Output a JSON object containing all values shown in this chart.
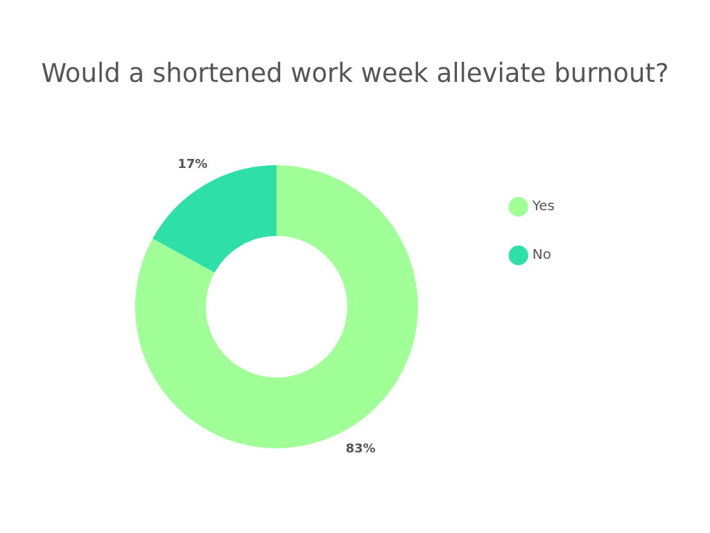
{
  "chart_data": {
    "type": "donut",
    "title": "Would a shortened work week alleviate burnout?",
    "categories": [
      "Yes",
      "No"
    ],
    "values": [
      83,
      17
    ],
    "colors": [
      "#a0ff96",
      "#2ee0a8"
    ],
    "value_labels": [
      "83%",
      "17%"
    ],
    "legend": "right"
  }
}
